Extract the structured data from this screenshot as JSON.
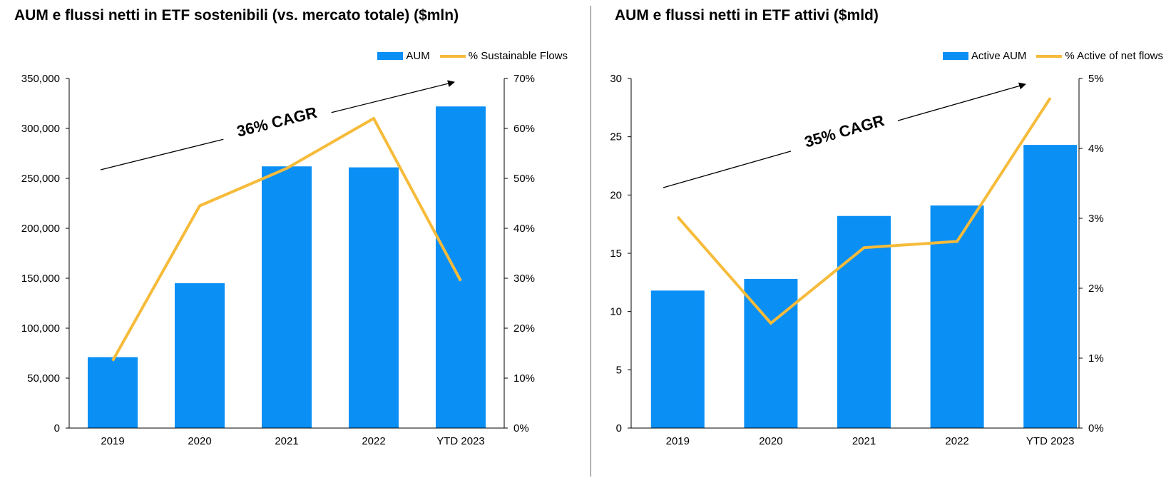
{
  "colors": {
    "bar": "#0a8ff5",
    "line": "#f6bb3a",
    "axis": "#000000"
  },
  "charts": [
    {
      "title": "AUM e flussi netti in ETF sostenibili (vs. mercato totale) ($mln)",
      "legend": {
        "bar": "AUM",
        "line": "% Sustainable Flows"
      },
      "annotation": "36% CAGR"
    },
    {
      "title": "AUM e flussi netti in ETF attivi ($mld)",
      "legend": {
        "bar": "Active AUM",
        "line": "% Active of net flows"
      },
      "annotation": "35% CAGR"
    }
  ],
  "chart_data": [
    {
      "type": "bar",
      "title": "AUM e flussi netti in ETF sostenibili (vs. mercato totale) ($mln)",
      "categories": [
        "2019",
        "2020",
        "2021",
        "2022",
        "YTD 2023"
      ],
      "series": [
        {
          "name": "AUM",
          "type": "bar",
          "axis": "left",
          "values": [
            71000,
            145000,
            262000,
            261000,
            322000
          ]
        },
        {
          "name": "% Sustainable Flows",
          "type": "line",
          "axis": "right",
          "values": [
            13.5,
            44.5,
            52,
            62,
            29.5
          ]
        }
      ],
      "ylim": [
        0,
        350000
      ],
      "yticks": [
        "0",
        "50,000",
        "100,000",
        "150,000",
        "200,000",
        "250,000",
        "300,000",
        "350,000"
      ],
      "y2lim": [
        0,
        70
      ],
      "y2ticks": [
        "0%",
        "10%",
        "20%",
        "30%",
        "40%",
        "50%",
        "60%",
        "70%"
      ],
      "annotation": "36% CAGR",
      "legend_position": "top-right",
      "grid": false
    },
    {
      "type": "bar",
      "title": "AUM e flussi netti in ETF attivi ($mld)",
      "categories": [
        "2019",
        "2020",
        "2021",
        "2022",
        "YTD 2023"
      ],
      "series": [
        {
          "name": "Active AUM",
          "type": "bar",
          "axis": "left",
          "values": [
            11.8,
            12.8,
            18.2,
            19.1,
            24.3
          ]
        },
        {
          "name": "% Active of net flows",
          "type": "line",
          "axis": "right",
          "values": [
            3.02,
            1.5,
            2.58,
            2.67,
            4.72
          ]
        }
      ],
      "ylim": [
        0,
        30
      ],
      "yticks": [
        "0",
        "5",
        "10",
        "15",
        "20",
        "25",
        "30"
      ],
      "y2lim": [
        0,
        5
      ],
      "y2ticks": [
        "0%",
        "1%",
        "2%",
        "3%",
        "4%",
        "5%"
      ],
      "annotation": "35% CAGR",
      "legend_position": "top-right",
      "grid": false
    }
  ]
}
